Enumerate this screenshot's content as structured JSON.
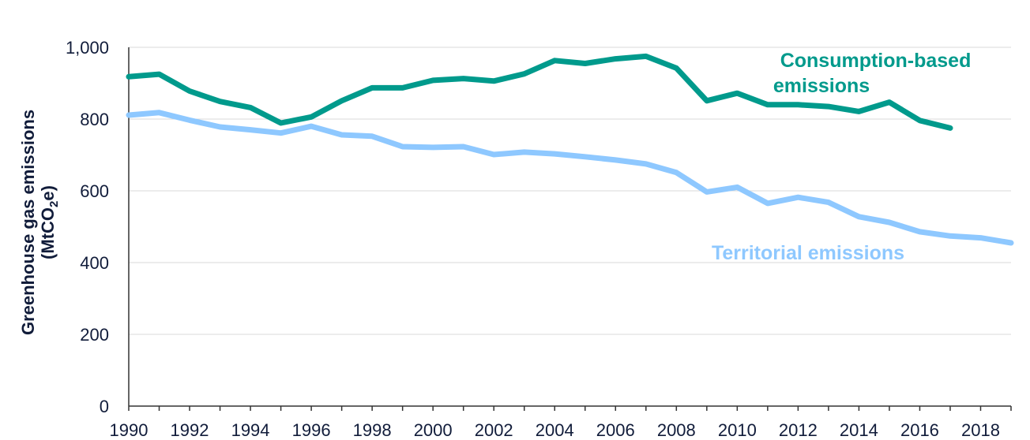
{
  "chart_data": {
    "type": "line",
    "ylabel": "Greenhouse gas emissions",
    "ylabel_unit_prefix": "(MtCO",
    "ylabel_unit_sub": "2",
    "ylabel_unit_suffix": "e)",
    "xlabel": "",
    "ylim": [
      0,
      1000
    ],
    "xlim": [
      1990,
      2019
    ],
    "yticks": [
      0,
      200,
      400,
      600,
      800,
      1000
    ],
    "ytick_labels": [
      "0",
      "200",
      "400",
      "600",
      "800",
      "1,000"
    ],
    "xticks": [
      1990,
      1992,
      1994,
      1996,
      1998,
      2000,
      2002,
      2004,
      2006,
      2008,
      2010,
      2012,
      2014,
      2016,
      2018
    ],
    "grid": "horizontal",
    "series": [
      {
        "name": "Consumption-based emissions",
        "label_lines": [
          "Consumption-based",
          "emissions"
        ],
        "color": "#009a8c",
        "x": [
          1990,
          1991,
          1992,
          1993,
          1994,
          1995,
          1996,
          1997,
          1998,
          1999,
          2000,
          2001,
          2002,
          2003,
          2004,
          2005,
          2006,
          2007,
          2008,
          2009,
          2010,
          2011,
          2012,
          2013,
          2014,
          2015,
          2016,
          2017
        ],
        "values": [
          918,
          925,
          878,
          849,
          832,
          789,
          806,
          851,
          887,
          887,
          908,
          913,
          906,
          926,
          963,
          955,
          968,
          975,
          942,
          851,
          872,
          840,
          840,
          835,
          821,
          847,
          796,
          775
        ]
      },
      {
        "name": "Territorial emissions",
        "label_lines": [
          "Territorial emissions"
        ],
        "color": "#8ec8ff",
        "x": [
          1990,
          1991,
          1992,
          1993,
          1994,
          1995,
          1996,
          1997,
          1998,
          1999,
          2000,
          2001,
          2002,
          2003,
          2004,
          2005,
          2006,
          2007,
          2008,
          2009,
          2010,
          2011,
          2012,
          2013,
          2014,
          2015,
          2016,
          2017,
          2018,
          2019
        ],
        "values": [
          811,
          818,
          797,
          778,
          770,
          761,
          780,
          756,
          752,
          723,
          721,
          723,
          701,
          708,
          703,
          695,
          686,
          675,
          651,
          597,
          610,
          565,
          582,
          568,
          528,
          512,
          486,
          474,
          469,
          455
        ]
      }
    ]
  }
}
